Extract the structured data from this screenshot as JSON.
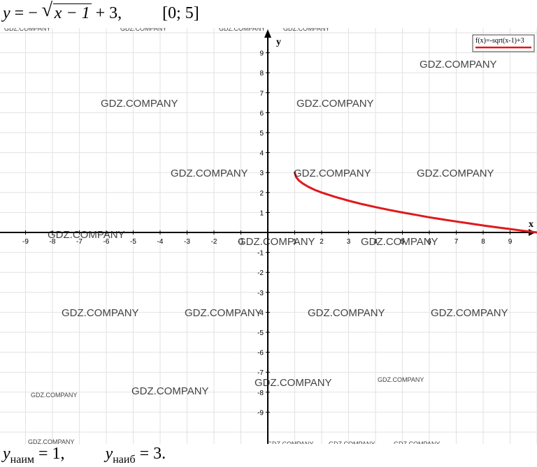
{
  "header": {
    "y": "y",
    "eq": "= −",
    "radicand": "x − 1",
    "tail": "+ 3,",
    "interval": "[0; 5]"
  },
  "footer": {
    "min_var": "y",
    "min_sub": "наим",
    "min_val": "= 1,",
    "max_var": "y",
    "max_sub": "наиб",
    "max_val": "= 3."
  },
  "watermarks": [
    {
      "text": "GDZ.COMPANY",
      "size": "small"
    },
    {
      "text": "GDZ.COMPANY",
      "size": "small"
    },
    {
      "text": "GDZ.COMPANY",
      "size": "small"
    },
    {
      "text": "GDZ.COMPANY",
      "size": "small"
    },
    {
      "text": "GDZ.COMPANY",
      "size": "big"
    },
    {
      "text": "GDZ.COMPANY",
      "size": "big"
    },
    {
      "text": "GDZ.COMPANY",
      "size": "big"
    },
    {
      "text": "GDZ.COMPANY",
      "size": "big"
    },
    {
      "text": "GDZ.COMPANY",
      "size": "big"
    },
    {
      "text": "GDZ.COMPANY",
      "size": "big"
    },
    {
      "text": "GDZ.COMPANY",
      "size": "big"
    },
    {
      "text": "GDZ.COMPANY",
      "size": "big"
    },
    {
      "text": "GDZ.COMPANY",
      "size": "big"
    },
    {
      "text": "GDZ.COMPANY",
      "size": "big"
    },
    {
      "text": "GDZ.COMPANY",
      "size": "big"
    },
    {
      "text": "GDZ.COMPANY",
      "size": "big"
    },
    {
      "text": "GDZ.COMPANY",
      "size": "big"
    },
    {
      "text": "GDZ.COMPANY",
      "size": "big"
    },
    {
      "text": "GDZ.COMPANY",
      "size": "big"
    },
    {
      "text": "GDZ.COMPANY",
      "size": "small"
    },
    {
      "text": "GDZ.COMPANY",
      "size": "small"
    },
    {
      "text": "GDZ.COMPANY",
      "size": "small"
    },
    {
      "text": "GDZ.COMPANY",
      "size": "small"
    },
    {
      "text": "GDZ.COMPANY",
      "size": "small"
    },
    {
      "text": "GDZ.COMPANY",
      "size": "small"
    }
  ],
  "chart_data": {
    "type": "line",
    "title": "",
    "xlabel": "x",
    "ylabel": "y",
    "xlim": [
      -10,
      10
    ],
    "ylim": [
      -10,
      10
    ],
    "grid": true,
    "x_ticks": [
      -9,
      -8,
      -7,
      -6,
      -5,
      -4,
      -3,
      -2,
      -1,
      1,
      2,
      3,
      4,
      5,
      6,
      7,
      8,
      9
    ],
    "y_ticks": [
      -9,
      -8,
      -7,
      -6,
      -5,
      -4,
      -3,
      -2,
      -1,
      1,
      2,
      3,
      4,
      5,
      6,
      7,
      8,
      9
    ],
    "legend": {
      "position": "top-right",
      "entries": [
        "f(x)=-sqrt(x-1)+3"
      ]
    },
    "series": [
      {
        "name": "f(x)=-sqrt(x-1)+3",
        "color": "#e0181b",
        "x": [
          1,
          1.05,
          1.15,
          1.3,
          1.5,
          1.75,
          2,
          2.5,
          3,
          3.5,
          4,
          4.5,
          5,
          5.5,
          6,
          6.5,
          7,
          7.5,
          8,
          8.5,
          9,
          9.5,
          10
        ],
        "y": [
          3,
          2.78,
          2.61,
          2.45,
          2.29,
          2.13,
          2,
          1.78,
          1.59,
          1.42,
          1.27,
          1.13,
          1,
          0.88,
          0.76,
          0.65,
          0.55,
          0.45,
          0.35,
          0.26,
          0.17,
          0.08,
          0
        ]
      }
    ]
  }
}
